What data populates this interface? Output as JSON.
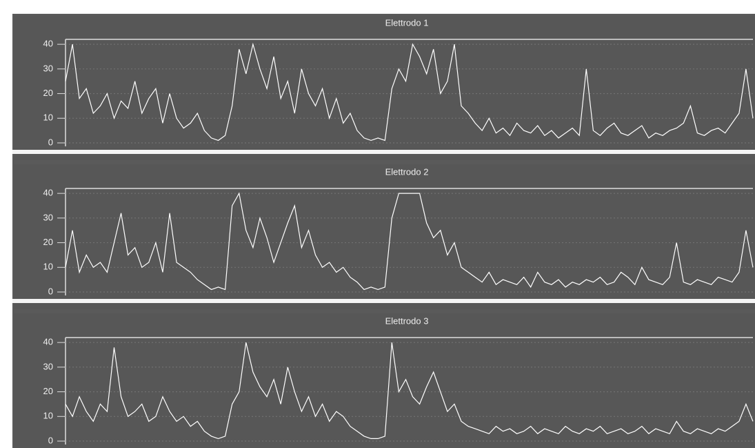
{
  "chart_data": [
    {
      "type": "line",
      "title": "Elettrodo 1",
      "color": "#ffffff",
      "ylim": [
        0,
        42
      ],
      "yticks": [
        0,
        10,
        20,
        30,
        40
      ],
      "grid": true,
      "values": [
        25,
        40,
        18,
        22,
        12,
        15,
        20,
        10,
        17,
        14,
        25,
        12,
        18,
        22,
        8,
        20,
        10,
        6,
        8,
        12,
        5,
        2,
        1,
        3,
        15,
        38,
        28,
        40,
        30,
        22,
        35,
        18,
        25,
        12,
        30,
        20,
        15,
        22,
        10,
        18,
        8,
        12,
        5,
        2,
        1,
        2,
        1,
        22,
        30,
        25,
        40,
        35,
        28,
        38,
        20,
        25,
        40,
        15,
        12,
        8,
        5,
        10,
        4,
        6,
        3,
        8,
        5,
        4,
        7,
        3,
        5,
        2,
        4,
        6,
        3,
        30,
        5,
        3,
        6,
        8,
        4,
        3,
        5,
        7,
        2,
        4,
        3,
        5,
        6,
        8,
        15,
        4,
        3,
        5,
        6,
        4,
        8,
        12,
        30,
        10
      ]
    },
    {
      "type": "line",
      "title": "Elettrodo 2",
      "color": "#ffffff",
      "ylim": [
        0,
        42
      ],
      "yticks": [
        0,
        10,
        20,
        30,
        40
      ],
      "grid": true,
      "values": [
        10,
        25,
        8,
        15,
        10,
        12,
        8,
        20,
        32,
        15,
        18,
        10,
        12,
        20,
        8,
        32,
        12,
        10,
        8,
        5,
        3,
        1,
        2,
        1,
        35,
        40,
        25,
        18,
        30,
        22,
        12,
        20,
        28,
        35,
        18,
        25,
        15,
        10,
        12,
        8,
        10,
        6,
        4,
        1,
        2,
        1,
        2,
        30,
        40,
        40,
        40,
        40,
        28,
        22,
        25,
        15,
        20,
        10,
        8,
        6,
        4,
        8,
        3,
        5,
        4,
        3,
        6,
        2,
        8,
        4,
        3,
        5,
        2,
        4,
        3,
        5,
        4,
        6,
        3,
        4,
        8,
        6,
        3,
        10,
        5,
        4,
        3,
        6,
        20,
        4,
        3,
        5,
        4,
        3,
        6,
        5,
        4,
        8,
        25,
        10
      ]
    },
    {
      "type": "line",
      "title": "Elettrodo 3",
      "color": "#ffffff",
      "ylim": [
        0,
        42
      ],
      "yticks": [
        0,
        10,
        20,
        30,
        40
      ],
      "grid": true,
      "values": [
        15,
        10,
        18,
        12,
        8,
        15,
        12,
        38,
        18,
        10,
        12,
        15,
        8,
        10,
        18,
        12,
        8,
        10,
        6,
        8,
        4,
        2,
        1,
        2,
        15,
        20,
        40,
        28,
        22,
        18,
        25,
        15,
        30,
        20,
        12,
        18,
        10,
        15,
        8,
        12,
        10,
        6,
        4,
        2,
        1,
        1,
        2,
        40,
        20,
        25,
        18,
        15,
        22,
        28,
        20,
        12,
        15,
        8,
        6,
        5,
        4,
        3,
        6,
        4,
        5,
        3,
        4,
        6,
        3,
        5,
        4,
        3,
        6,
        4,
        3,
        5,
        4,
        6,
        3,
        4,
        5,
        3,
        4,
        6,
        3,
        5,
        4,
        3,
        8,
        4,
        3,
        5,
        4,
        3,
        5,
        4,
        6,
        8,
        15,
        8
      ]
    }
  ]
}
